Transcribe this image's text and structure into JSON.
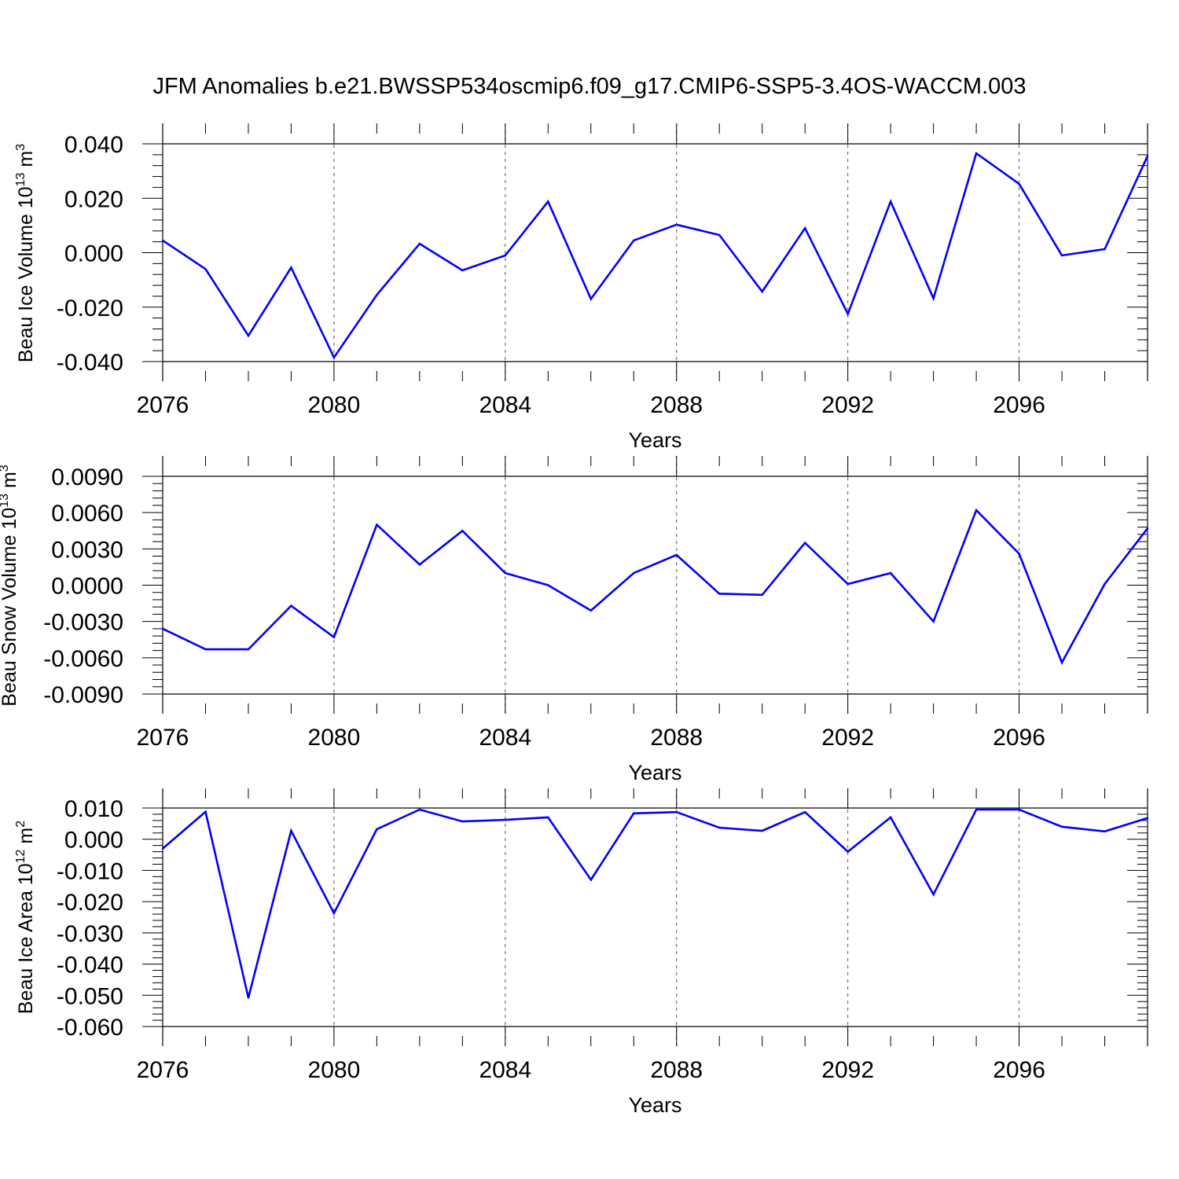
{
  "title": "JFM Anomalies b.e21.BWSSP534oscmip6.f09_g17.CMIP6-SSP5-3.4OS-WACCM.003",
  "colors": {
    "line": "#0000ff",
    "axis": "#000000",
    "grid": "#555555",
    "background": "#ffffff"
  },
  "chart_data": [
    {
      "type": "line",
      "name": "Beau Ice Volume",
      "ylabel": {
        "base": "Beau Ice Volume 10",
        "sup": "13",
        "unit": " m",
        "unit_sup": "3"
      },
      "xlabel": "Years",
      "xlim": [
        2076,
        2099
      ],
      "ylim": [
        -0.04,
        0.04
      ],
      "yticks": [
        -0.04,
        -0.02,
        0.0,
        0.02,
        0.04
      ],
      "ytick_labels": [
        "-0.040",
        "-0.020",
        "0.000",
        "0.020",
        "0.040"
      ],
      "xticks": [
        2076,
        2080,
        2084,
        2088,
        2092,
        2096
      ],
      "xtick_labels": [
        "2076",
        "2080",
        "2084",
        "2088",
        "2092",
        "2096"
      ],
      "grid": "vertical dashed at major x ticks",
      "x": [
        2076,
        2077,
        2078,
        2079,
        2080,
        2081,
        2082,
        2083,
        2084,
        2085,
        2086,
        2087,
        2088,
        2089,
        2090,
        2091,
        2092,
        2093,
        2094,
        2095,
        2096,
        2097,
        2098,
        2099
      ],
      "values": [
        0.0045,
        -0.006,
        -0.0305,
        -0.0055,
        -0.0385,
        -0.0155,
        0.0033,
        -0.0065,
        -0.001,
        0.0188,
        -0.017,
        0.0045,
        0.0103,
        0.0065,
        -0.0143,
        0.009,
        -0.0225,
        0.0188,
        -0.0168,
        0.0365,
        0.0253,
        -0.001,
        0.0013,
        0.0355
      ]
    },
    {
      "type": "line",
      "name": "Beau Snow Volume",
      "ylabel": {
        "base": "Beau Snow Volume 10",
        "sup": "13",
        "unit": " m",
        "unit_sup": "3"
      },
      "xlabel": "Years",
      "xlim": [
        2076,
        2099
      ],
      "ylim": [
        -0.009,
        0.009
      ],
      "yticks": [
        -0.009,
        -0.006,
        -0.003,
        0.0,
        0.003,
        0.006,
        0.009
      ],
      "ytick_labels": [
        "-0.0090",
        "-0.0060",
        "-0.0030",
        "0.0000",
        "0.0030",
        "0.0060",
        "0.0090"
      ],
      "xticks": [
        2076,
        2080,
        2084,
        2088,
        2092,
        2096
      ],
      "xtick_labels": [
        "2076",
        "2080",
        "2084",
        "2088",
        "2092",
        "2096"
      ],
      "grid": "vertical dashed at major x ticks",
      "x": [
        2076,
        2077,
        2078,
        2079,
        2080,
        2081,
        2082,
        2083,
        2084,
        2085,
        2086,
        2087,
        2088,
        2089,
        2090,
        2091,
        2092,
        2093,
        2094,
        2095,
        2096,
        2097,
        2098,
        2099
      ],
      "values": [
        -0.0036,
        -0.0053,
        -0.0053,
        -0.0017,
        -0.0043,
        0.005,
        0.0017,
        0.0045,
        0.001,
        0.0,
        -0.0021,
        0.001,
        0.0025,
        -0.0007,
        -0.0008,
        0.0035,
        0.0001,
        0.001,
        -0.003,
        0.0062,
        0.0026,
        -0.0064,
        0.0001,
        0.0047
      ]
    },
    {
      "type": "line",
      "name": "Beau Ice Area",
      "ylabel": {
        "base": "Beau Ice Area 10",
        "sup": "12",
        "unit": " m",
        "unit_sup": "2"
      },
      "xlabel": "Years",
      "xlim": [
        2076,
        2099
      ],
      "ylim": [
        -0.06,
        0.01
      ],
      "yticks": [
        -0.06,
        -0.05,
        -0.04,
        -0.03,
        -0.02,
        -0.01,
        0.0,
        0.01
      ],
      "ytick_labels": [
        "-0.060",
        "-0.050",
        "-0.040",
        "-0.030",
        "-0.020",
        "-0.010",
        "0.000",
        "0.010"
      ],
      "xticks": [
        2076,
        2080,
        2084,
        2088,
        2092,
        2096
      ],
      "xtick_labels": [
        "2076",
        "2080",
        "2084",
        "2088",
        "2092",
        "2096"
      ],
      "grid": "vertical dashed at major x ticks",
      "x": [
        2076,
        2077,
        2078,
        2079,
        2080,
        2081,
        2082,
        2083,
        2084,
        2085,
        2086,
        2087,
        2088,
        2089,
        2090,
        2091,
        2092,
        2093,
        2094,
        2095,
        2096,
        2097,
        2098,
        2099
      ],
      "values": [
        -0.003,
        0.0088,
        -0.0508,
        0.0027,
        -0.0237,
        0.0032,
        0.0095,
        0.0057,
        0.0062,
        0.007,
        -0.013,
        0.0083,
        0.0087,
        0.0037,
        0.0027,
        0.0087,
        -0.004,
        0.007,
        -0.0177,
        0.0095,
        0.0095,
        0.004,
        0.0025,
        0.0068
      ]
    }
  ]
}
